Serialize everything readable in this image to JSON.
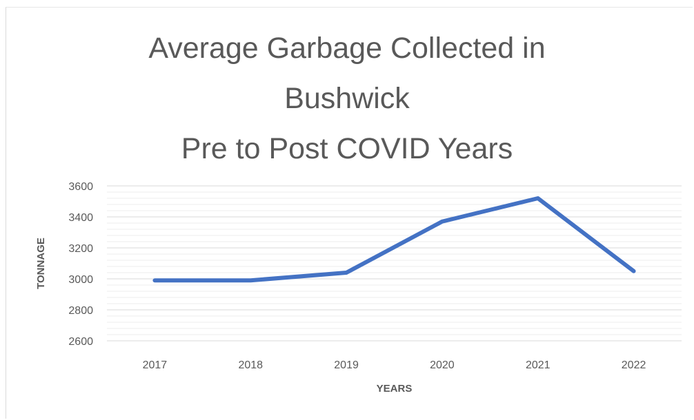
{
  "chart_data": {
    "type": "line",
    "title_lines": [
      "Average Garbage Collected in",
      "Bushwick",
      "Pre to Post COVID Years"
    ],
    "xlabel": "YEARS",
    "ylabel": "TONNAGE",
    "categories": [
      "2017",
      "2018",
      "2019",
      "2020",
      "2021",
      "2022"
    ],
    "series": [
      {
        "values": [
          2990,
          2990,
          3040,
          3370,
          3520,
          3050
        ],
        "color": "#4472c4"
      }
    ],
    "ylim": [
      2600,
      3600
    ],
    "yticks": [
      2600,
      2800,
      3000,
      3200,
      3400,
      3600
    ],
    "grid": true,
    "minor_gridlines": true,
    "legend": "none",
    "colors": {
      "line": "#4472c4",
      "major_grid": "#d9d9d9",
      "minor_grid": "#eeeeee",
      "text": "#595959"
    }
  }
}
